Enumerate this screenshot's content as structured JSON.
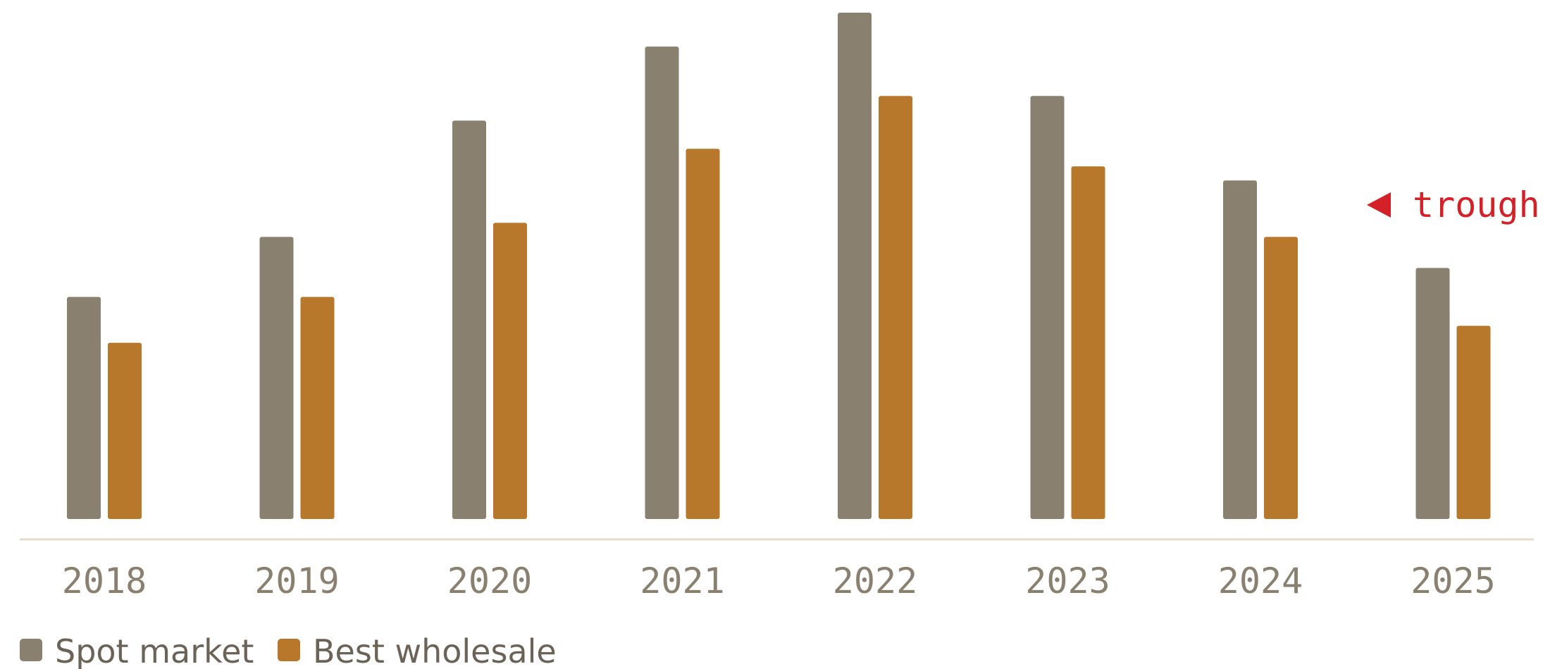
{
  "chart_data": {
    "type": "bar",
    "title": "",
    "xlabel": "",
    "ylabel": "",
    "categories": [
      "2018",
      "2019",
      "2020",
      "2021",
      "2022",
      "2023",
      "2024",
      "2025"
    ],
    "series": [
      {
        "name": "Spot market",
        "color": "#8a8070",
        "values": [
          31.5,
          40,
          56.5,
          67,
          71.8,
          60,
          48,
          35.6
        ]
      },
      {
        "name": "Best wholesale",
        "color": "#b8782c",
        "values": [
          25,
          31.5,
          42,
          52.5,
          60,
          50,
          40,
          27.4
        ]
      }
    ],
    "ylim": [
      0,
      72
    ],
    "grid": false,
    "legend_position": "bottom-left",
    "annotations": [
      {
        "text": "trough",
        "category": "2025",
        "color": "#d42027",
        "marker": "left-pointing-triangle"
      }
    ]
  }
}
